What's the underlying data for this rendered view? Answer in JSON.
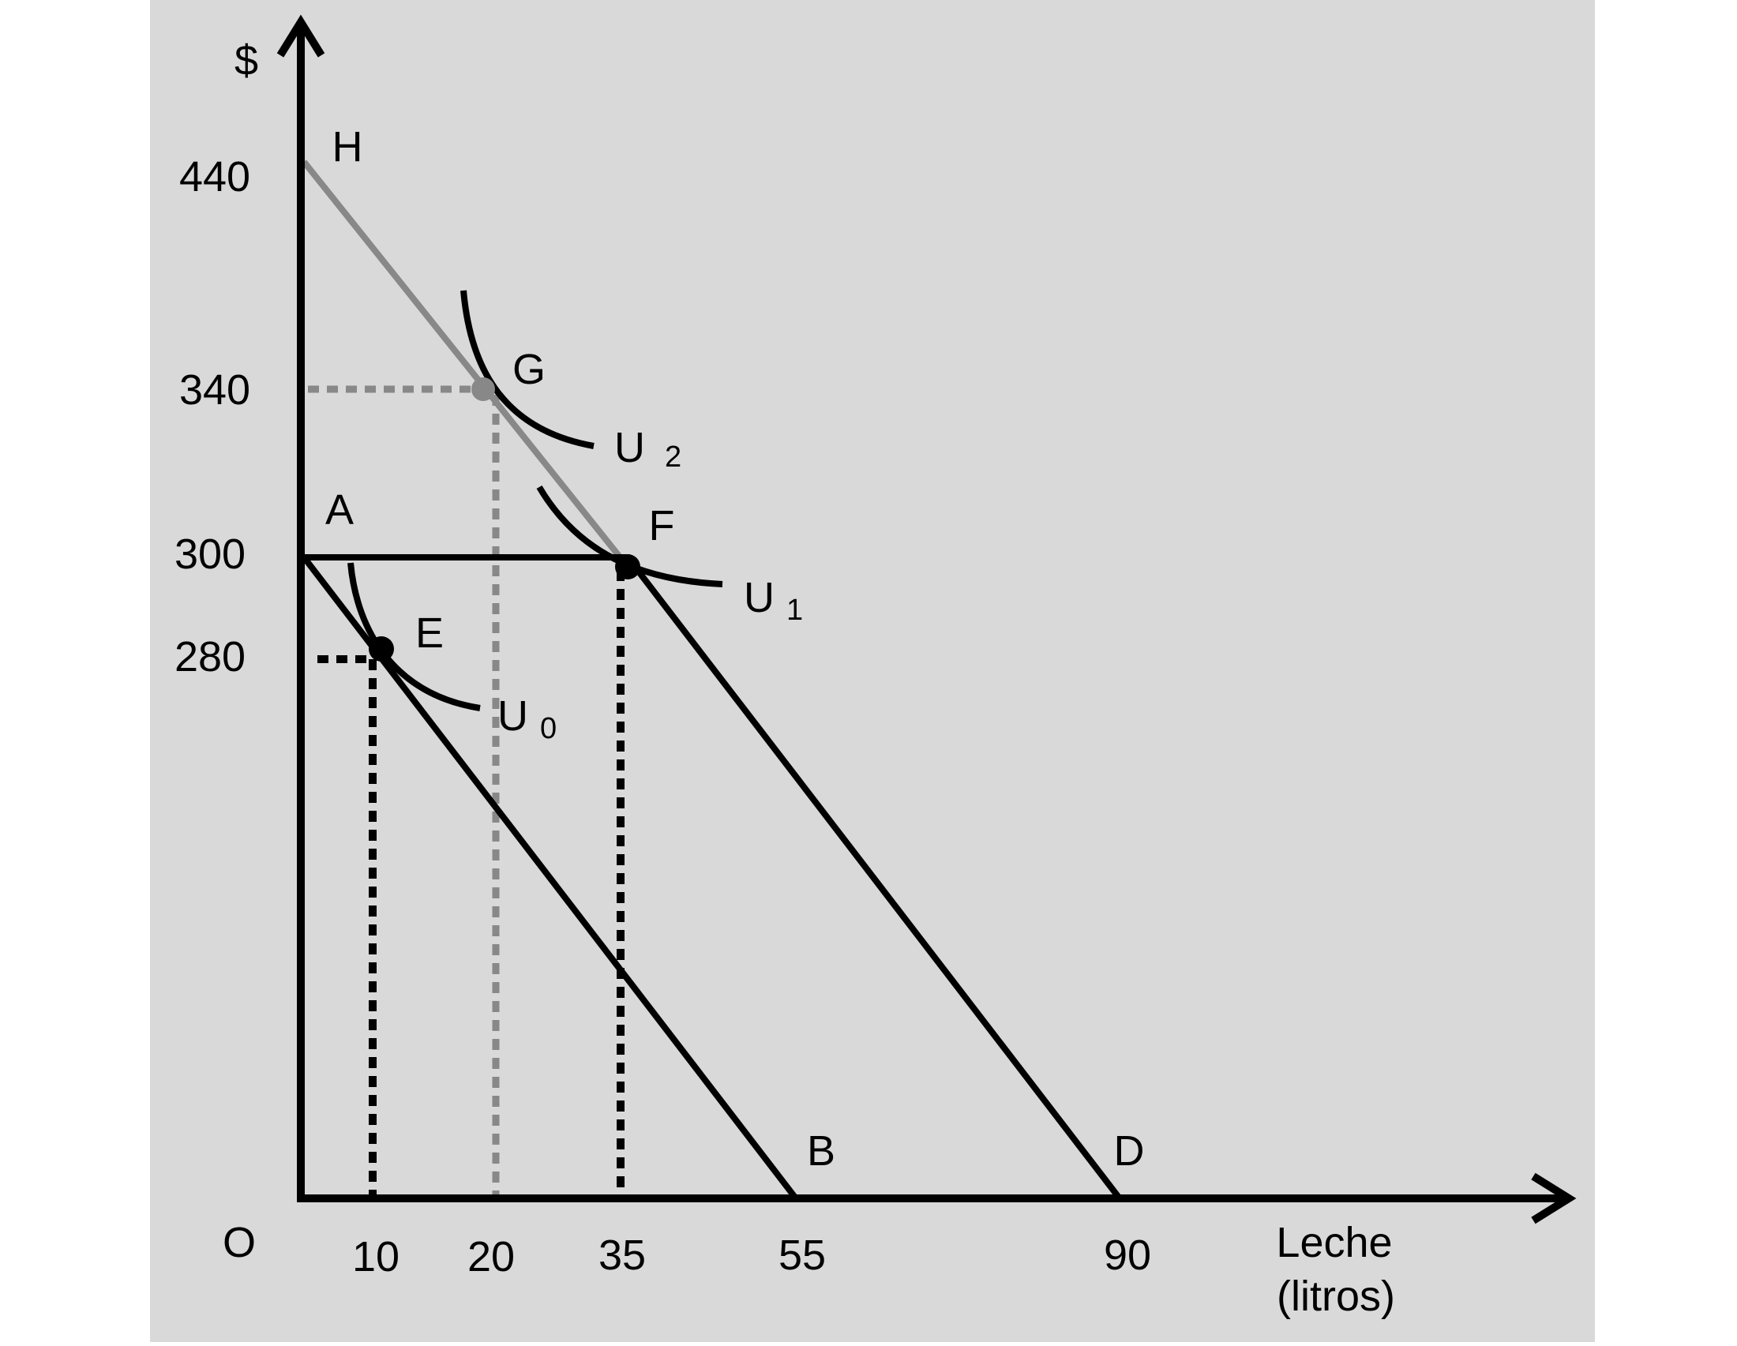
{
  "colors": {
    "page": "#ffffff",
    "panel": "#d9d9d9",
    "ink": "#000000",
    "gray_line": "#888888"
  },
  "axes": {
    "y_label": "$",
    "x_label_line1": "Leche",
    "x_label_line2": "(litros)",
    "origin_label": "O",
    "y_ticks": [
      "440",
      "340",
      "300",
      "280"
    ],
    "x_ticks": [
      "10",
      "20",
      "35",
      "55",
      "90"
    ]
  },
  "points": {
    "H": "H",
    "G": "G",
    "A": "A",
    "F": "F",
    "E": "E",
    "B": "B",
    "D": "D"
  },
  "curves": {
    "U0_main": "U",
    "U0_sub": "0",
    "U1_main": "U",
    "U1_sub": "1",
    "U2_main": "U",
    "U2_sub": "2"
  }
}
